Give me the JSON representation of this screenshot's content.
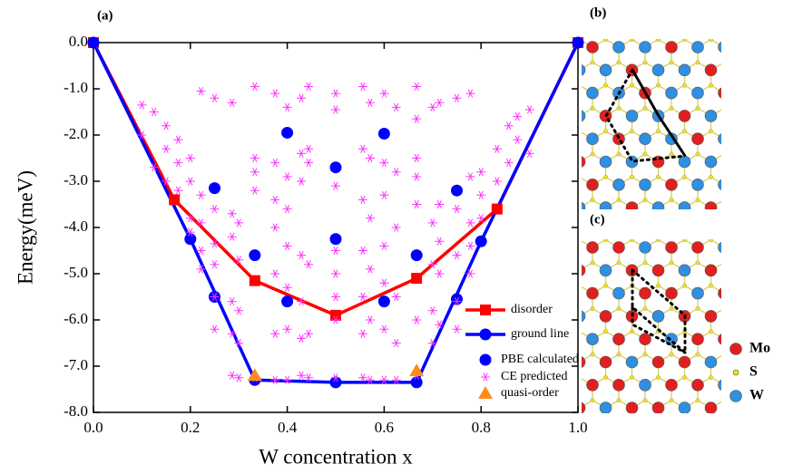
{
  "chart_data": {
    "type": "scatter",
    "annotations": [
      "(a)"
    ],
    "xlabel": "W concentration x",
    "ylabel": "Energy(meV)",
    "xlim": [
      0,
      1
    ],
    "ylim": [
      -8,
      0
    ],
    "xticks": [
      {
        "value": 0,
        "label": "0.0"
      },
      {
        "value": 0.2,
        "label": "0.2"
      },
      {
        "value": 0.4,
        "label": "0.4"
      },
      {
        "value": 0.6,
        "label": "0.6"
      },
      {
        "value": 0.8,
        "label": "0.8"
      },
      {
        "value": 1,
        "label": "1.0"
      }
    ],
    "yticks": [
      {
        "value": 0,
        "label": "0.0"
      },
      {
        "value": -1,
        "label": "-1.0"
      },
      {
        "value": -2,
        "label": "-2.0"
      },
      {
        "value": -3,
        "label": "-3.0"
      },
      {
        "value": -4,
        "label": "-4.0"
      },
      {
        "value": -5,
        "label": "-5.0"
      },
      {
        "value": -6,
        "label": "-6.0"
      },
      {
        "value": -7,
        "label": "-7.0"
      },
      {
        "value": -8,
        "label": "-8.0"
      }
    ],
    "legend": "lower right",
    "series": [
      {
        "name": "disorder",
        "color": "#ff0000",
        "marker": "square",
        "line": true,
        "x": [
          0,
          0.167,
          0.333,
          0.5,
          0.667,
          0.833,
          1
        ],
        "values": [
          0,
          -3.4,
          -5.15,
          -5.9,
          -5.1,
          -3.6,
          0
        ]
      },
      {
        "name": "ground line",
        "color": "#0000ff",
        "marker": "circle",
        "line": true,
        "x": [
          0,
          0.2,
          0.333,
          0.5,
          0.667,
          0.8,
          1
        ],
        "values": [
          0,
          -4.25,
          -7.3,
          -7.35,
          -7.35,
          -4.3,
          0
        ]
      },
      {
        "name": "PBE calculated",
        "color": "#0000ff",
        "marker": "circle",
        "line": false,
        "x": [
          0.25,
          0.25,
          0.333,
          0.4,
          0.4,
          0.5,
          0.5,
          0.6,
          0.6,
          0.667,
          0.75,
          0.75
        ],
        "values": [
          -3.15,
          -5.5,
          -4.6,
          -1.95,
          -5.6,
          -2.7,
          -4.25,
          -1.97,
          -5.6,
          -4.6,
          -3.2,
          -5.55
        ]
      },
      {
        "name": "CE predicted",
        "color": "#ff33ff",
        "marker": "asterisk",
        "line": false,
        "x": [
          0.1,
          0.1,
          0.125,
          0.125,
          0.15,
          0.15,
          0.15,
          0.175,
          0.175,
          0.175,
          0.2,
          0.2,
          0.2,
          0.2,
          0.222,
          0.222,
          0.222,
          0.222,
          0.222,
          0.25,
          0.25,
          0.25,
          0.25,
          0.25,
          0.25,
          0.286,
          0.286,
          0.286,
          0.286,
          0.286,
          0.286,
          0.3,
          0.3,
          0.3,
          0.3,
          0.3,
          0.333,
          0.333,
          0.333,
          0.333,
          0.333,
          0.375,
          0.375,
          0.375,
          0.375,
          0.375,
          0.375,
          0.375,
          0.4,
          0.4,
          0.4,
          0.4,
          0.4,
          0.4,
          0.4,
          0.429,
          0.429,
          0.429,
          0.429,
          0.429,
          0.429,
          0.429,
          0.444,
          0.444,
          0.444,
          0.444,
          0.444,
          0.444,
          0.5,
          0.5,
          0.5,
          0.5,
          0.5,
          0.5,
          0.5,
          0.5,
          0.556,
          0.556,
          0.556,
          0.556,
          0.556,
          0.556,
          0.556,
          0.571,
          0.571,
          0.571,
          0.571,
          0.571,
          0.571,
          0.6,
          0.6,
          0.6,
          0.6,
          0.6,
          0.6,
          0.6,
          0.625,
          0.625,
          0.625,
          0.625,
          0.625,
          0.625,
          0.667,
          0.667,
          0.667,
          0.667,
          0.667,
          0.667,
          0.667,
          0.7,
          0.7,
          0.7,
          0.7,
          0.7,
          0.714,
          0.714,
          0.714,
          0.714,
          0.714,
          0.75,
          0.75,
          0.75,
          0.75,
          0.75,
          0.778,
          0.778,
          0.778,
          0.778,
          0.778,
          0.8,
          0.8,
          0.8,
          0.833,
          0.833,
          0.857,
          0.857,
          0.875,
          0.875,
          0.9,
          0.9
        ],
        "values": [
          -1.35,
          -2.0,
          -1.5,
          -2.7,
          -1.8,
          -2.3,
          -3.0,
          -2.1,
          -2.6,
          -3.2,
          -2.5,
          -3.0,
          -3.8,
          -4.1,
          -1.05,
          -3.3,
          -3.9,
          -4.5,
          -4.9,
          -1.2,
          -3.6,
          -4.35,
          -4.8,
          -5.5,
          -6.2,
          -1.3,
          -3.7,
          -4.2,
          -5.6,
          -6.3,
          -7.2,
          -3.9,
          -4.7,
          -5.8,
          -6.5,
          -7.25,
          -0.95,
          -2.5,
          -2.8,
          -3.2,
          -7.25,
          -1.1,
          -2.6,
          -3.4,
          -4.0,
          -5.0,
          -6.3,
          -7.3,
          -1.4,
          -2.9,
          -3.6,
          -4.4,
          -5.3,
          -6.2,
          -7.3,
          -1.2,
          -2.4,
          -3.0,
          -4.6,
          -5.6,
          -6.4,
          -7.2,
          -0.95,
          -2.3,
          -2.6,
          -4.8,
          -6.3,
          -7.25,
          -1.1,
          -1.45,
          -3.1,
          -4.5,
          -5.0,
          -5.5,
          -6.0,
          -7.25,
          -0.95,
          -2.3,
          -3.4,
          -4.5,
          -5.5,
          -6.3,
          -7.25,
          -1.3,
          -2.5,
          -3.8,
          -4.9,
          -6.0,
          -7.3,
          -1.1,
          -2.6,
          -3.3,
          -4.4,
          -5.2,
          -6.2,
          -7.3,
          -1.4,
          -2.8,
          -4.0,
          -5.5,
          -6.5,
          -7.3,
          -0.95,
          -1.65,
          -2.5,
          -2.9,
          -3.5,
          -6.0,
          -7.2,
          -1.4,
          -3.9,
          -4.8,
          -5.8,
          -6.5,
          -1.3,
          -3.5,
          -4.3,
          -5.0,
          -6.1,
          -1.2,
          -3.6,
          -4.6,
          -5.6,
          -6.2,
          -1.1,
          -2.9,
          -3.9,
          -4.4,
          -5.0,
          -2.8,
          -3.3,
          -3.8,
          -2.3,
          -3.0,
          -1.8,
          -2.6,
          -1.6,
          -2.1,
          -1.45,
          -2.4
        ]
      },
      {
        "name": "quasi-order",
        "color": "#ff8c1a",
        "marker": "triangle",
        "line": false,
        "x": [
          0.333,
          0.667
        ],
        "values": [
          -7.2,
          -7.1
        ]
      }
    ]
  },
  "insets": [
    {
      "label": "(b)"
    },
    {
      "label": "(c)"
    }
  ],
  "atom_legend": [
    {
      "name": "Mo",
      "color": "#e02020"
    },
    {
      "name": "S",
      "color": "#f2e600"
    },
    {
      "name": "W",
      "color": "#2f8fe0"
    }
  ]
}
